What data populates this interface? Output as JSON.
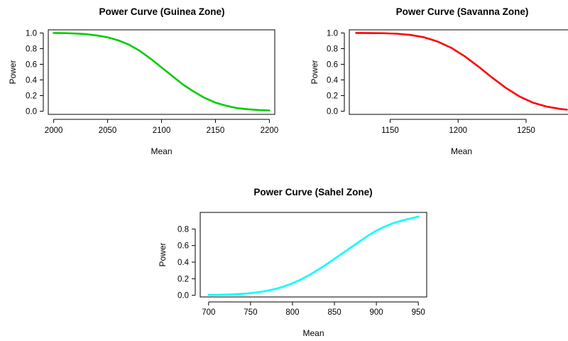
{
  "chart_data": [
    {
      "type": "line",
      "title": "Power Curve (Guinea Zone)",
      "xlabel": "Mean",
      "ylabel": "Power",
      "color": "#00cc00",
      "xlim": [
        1995,
        2205
      ],
      "ylim": [
        -0.04,
        1.04
      ],
      "xticks": [
        2000,
        2050,
        2100,
        2150,
        2200
      ],
      "yticks": [
        "0.0",
        "0.2",
        "0.4",
        "0.6",
        "0.8",
        "1.0"
      ],
      "grid": false,
      "x": [
        2000,
        2010,
        2020,
        2030,
        2040,
        2050,
        2060,
        2070,
        2080,
        2090,
        2100,
        2110,
        2120,
        2130,
        2140,
        2150,
        2160,
        2170,
        2180,
        2190,
        2200
      ],
      "y": [
        1.0,
        0.998,
        0.993,
        0.985,
        0.968,
        0.945,
        0.905,
        0.85,
        0.77,
        0.67,
        0.56,
        0.45,
        0.34,
        0.25,
        0.17,
        0.11,
        0.07,
        0.04,
        0.025,
        0.015,
        0.01
      ]
    },
    {
      "type": "line",
      "title": "Power Curve (Savanna Zone)",
      "xlabel": "Mean",
      "ylabel": "Power",
      "color": "#ff0000",
      "xlim": [
        1120,
        1285
      ],
      "ylim": [
        -0.04,
        1.04
      ],
      "xticks": [
        1150,
        1200,
        1250
      ],
      "yticks": [
        "0.0",
        "0.2",
        "0.4",
        "0.6",
        "0.8",
        "1.0"
      ],
      "grid": false,
      "x": [
        1125,
        1135,
        1145,
        1155,
        1165,
        1175,
        1185,
        1195,
        1205,
        1215,
        1225,
        1235,
        1245,
        1255,
        1265,
        1275,
        1280
      ],
      "y": [
        1.0,
        0.999,
        0.997,
        0.99,
        0.975,
        0.945,
        0.89,
        0.81,
        0.7,
        0.57,
        0.43,
        0.3,
        0.19,
        0.11,
        0.06,
        0.03,
        0.02
      ]
    },
    {
      "type": "line",
      "title": "Power Curve (Sahel Zone)",
      "xlabel": "Mean",
      "ylabel": "Power",
      "color": "#00ffff",
      "xlim": [
        690,
        960
      ],
      "ylim": [
        -0.02,
        1.0
      ],
      "xticks": [
        700,
        750,
        800,
        850,
        900,
        950
      ],
      "yticks": [
        "0.0",
        "0.2",
        "0.4",
        "0.6",
        "0.8"
      ],
      "grid": false,
      "x": [
        700,
        710,
        720,
        730,
        740,
        750,
        760,
        770,
        780,
        790,
        800,
        810,
        820,
        830,
        840,
        850,
        860,
        870,
        880,
        890,
        900,
        910,
        920,
        930,
        940,
        950
      ],
      "y": [
        0.005,
        0.006,
        0.008,
        0.012,
        0.018,
        0.026,
        0.038,
        0.055,
        0.078,
        0.108,
        0.145,
        0.19,
        0.245,
        0.305,
        0.37,
        0.44,
        0.51,
        0.58,
        0.65,
        0.72,
        0.78,
        0.83,
        0.87,
        0.9,
        0.925,
        0.95
      ]
    }
  ]
}
